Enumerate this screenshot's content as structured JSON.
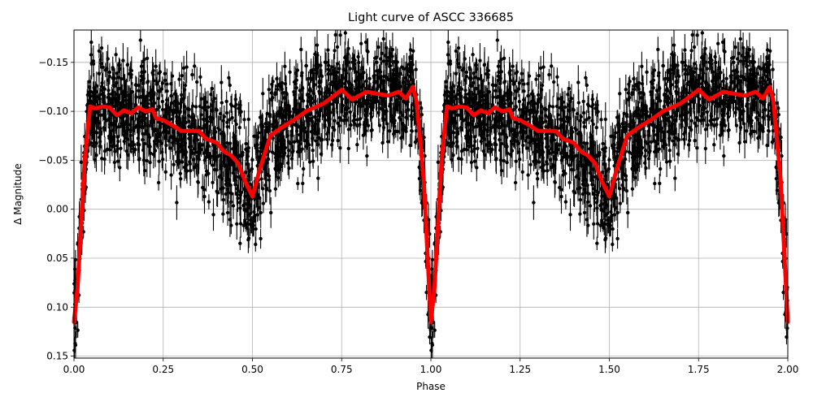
{
  "chart_data": {
    "type": "scatter",
    "title": "Light curve of ASCC 336685",
    "xlabel": "Phase",
    "ylabel": "Δ Magnitude",
    "xlim": [
      0.0,
      2.0
    ],
    "ylim": [
      0.152,
      -0.183
    ],
    "y_inverted": true,
    "grid": true,
    "legend": null,
    "xticks": [
      0.0,
      0.25,
      0.5,
      0.75,
      1.0,
      1.25,
      1.5,
      1.75,
      2.0
    ],
    "xtick_labels": [
      "0.00",
      "0.25",
      "0.50",
      "0.75",
      "1.00",
      "1.25",
      "1.50",
      "1.75",
      "2.00"
    ],
    "yticks": [
      -0.15,
      -0.1,
      -0.05,
      0.0,
      0.05,
      0.1,
      0.15
    ],
    "ytick_labels": [
      "−0.15",
      "−0.10",
      "−0.05",
      "0.00",
      "0.05",
      "0.10",
      "0.15"
    ],
    "series": [
      {
        "name": "observations",
        "kind": "errorbar",
        "color": "#000000",
        "description": "Dense phase-folded photometry with error bars, repeated over two cycles; scatter roughly ±0.05 mag around the model",
        "envelope": {
          "phase": [
            0.0,
            0.02,
            0.05,
            0.15,
            0.25,
            0.35,
            0.45,
            0.5,
            0.55,
            0.65,
            0.75,
            0.85,
            0.95,
            0.98,
            1.0
          ],
          "upper": [
            0.08,
            -0.06,
            -0.165,
            -0.16,
            -0.15,
            -0.14,
            -0.12,
            -0.07,
            -0.13,
            -0.16,
            -0.175,
            -0.17,
            -0.165,
            -0.09,
            0.09
          ],
          "lower": [
            0.15,
            0.09,
            0.02,
            0.03,
            0.04,
            0.06,
            0.09,
            0.11,
            0.08,
            0.04,
            0.02,
            0.02,
            0.05,
            0.1,
            0.15
          ]
        }
      },
      {
        "name": "model",
        "kind": "line",
        "color": "#ff0000",
        "phase": [
          0.0,
          0.01,
          0.03,
          0.045,
          0.06,
          0.08,
          0.1,
          0.12,
          0.14,
          0.16,
          0.18,
          0.2,
          0.22,
          0.23,
          0.25,
          0.28,
          0.3,
          0.35,
          0.37,
          0.4,
          0.42,
          0.44,
          0.46,
          0.48,
          0.5,
          0.52,
          0.55,
          0.58,
          0.62,
          0.65,
          0.7,
          0.75,
          0.78,
          0.82,
          0.85,
          0.88,
          0.91,
          0.93,
          0.95,
          0.96,
          0.98,
          1.0
        ],
        "magnitude": [
          0.115,
          0.08,
          -0.05,
          -0.105,
          -0.103,
          -0.105,
          -0.104,
          -0.096,
          -0.101,
          -0.098,
          -0.104,
          -0.1,
          -0.102,
          -0.093,
          -0.091,
          -0.085,
          -0.08,
          -0.08,
          -0.072,
          -0.068,
          -0.059,
          -0.055,
          -0.047,
          -0.028,
          -0.013,
          -0.04,
          -0.075,
          -0.083,
          -0.092,
          -0.1,
          -0.108,
          -0.122,
          -0.112,
          -0.12,
          -0.118,
          -0.116,
          -0.12,
          -0.113,
          -0.125,
          -0.11,
          -0.03,
          0.115
        ],
        "repeats_every": 1.0
      }
    ]
  }
}
